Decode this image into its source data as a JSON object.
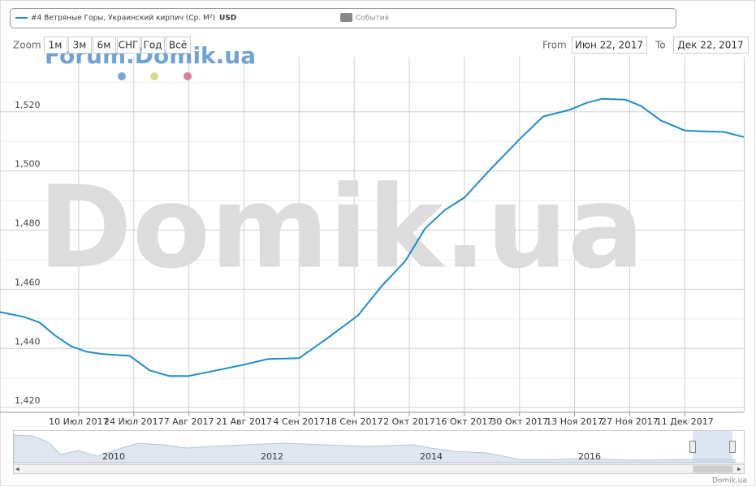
{
  "chart_data": {
    "type": "line",
    "legend_label": "#4 Ветряные Горы, Украинский кирпич (Ср. M²)",
    "legend_unit": "USD",
    "events_label": "События",
    "zoom_label": "Zoom",
    "zoom_buttons": [
      "1м",
      "3м",
      "6м",
      "СНГ",
      "Год",
      "Всё"
    ],
    "from_label": "From",
    "from_value": "Июн 22, 2017",
    "to_label": "To",
    "to_value": "Дек 22, 2017",
    "watermark_small": "Forum.Domik.ua",
    "watermark_large": "Domik.ua",
    "credit": "Domik.ua",
    "navigator_labels": [
      "2010",
      "2012",
      "2014",
      "2016"
    ],
    "x": [
      "2017-06-20",
      "2017-06-26",
      "2017-06-30",
      "2017-07-04",
      "2017-07-08",
      "2017-07-12",
      "2017-07-16",
      "2017-07-23",
      "2017-07-28",
      "2017-08-02",
      "2017-08-07",
      "2017-08-13",
      "2017-08-21",
      "2017-08-27",
      "2017-09-04",
      "2017-09-11",
      "2017-09-19",
      "2017-09-25",
      "2017-10-01",
      "2017-10-06",
      "2017-10-11",
      "2017-10-16",
      "2017-10-22",
      "2017-10-30",
      "2017-11-05",
      "2017-11-12",
      "2017-11-16",
      "2017-11-20",
      "2017-11-26",
      "2017-11-30",
      "2017-12-05",
      "2017-12-11",
      "2017-12-15",
      "2017-12-21",
      "2017-12-26"
    ],
    "series": [
      {
        "name": "#4 Ветряные Горы, Украинский кирпич (Ср. M²)",
        "color": "#1f8dc6",
        "values": [
          1452.3,
          1450.7,
          1448.8,
          1444.4,
          1440.8,
          1438.9,
          1438.1,
          1437.5,
          1432.6,
          1430.7,
          1430.7,
          1432.3,
          1434.5,
          1436.4,
          1436.7,
          1443.3,
          1451.2,
          1461.1,
          1469.6,
          1480.5,
          1486.8,
          1491.0,
          1499.7,
          1510.7,
          1518.4,
          1520.8,
          1523.0,
          1524.4,
          1524.1,
          1521.9,
          1517.0,
          1513.7,
          1513.4,
          1513.2,
          1511.5
        ]
      }
    ],
    "xlim": [
      "2017-06-20",
      "2017-12-26"
    ],
    "xticks": [
      {
        "value": "2017-07-10",
        "label": "10 Июл 2017"
      },
      {
        "value": "2017-07-24",
        "label": "24 Июл 2017"
      },
      {
        "value": "2017-08-07",
        "label": "7 Авг 2017"
      },
      {
        "value": "2017-08-21",
        "label": "21 Авг 2017"
      },
      {
        "value": "2017-09-04",
        "label": "4 Сен 2017"
      },
      {
        "value": "2017-09-18",
        "label": "18 Сен 2017"
      },
      {
        "value": "2017-10-02",
        "label": "2 Окт 2017"
      },
      {
        "value": "2017-10-16",
        "label": "16 Окт 2017"
      },
      {
        "value": "2017-10-30",
        "label": "30 Окт 2017"
      },
      {
        "value": "2017-11-13",
        "label": "13 Ноя 2017"
      },
      {
        "value": "2017-11-27",
        "label": "27 Ноя 2017"
      },
      {
        "value": "2017-12-11",
        "label": "11 Дек 2017"
      }
    ],
    "ylim": [
      1418.4,
      1538.6
    ],
    "yticks": [
      {
        "value": 1420,
        "label": "1,420"
      },
      {
        "value": 1440,
        "label": "1,440"
      },
      {
        "value": 1460,
        "label": "1,460"
      },
      {
        "value": 1480,
        "label": "1,480"
      },
      {
        "value": 1500,
        "label": "1,500"
      },
      {
        "value": 1520,
        "label": "1,520"
      }
    ],
    "minor_yticks": [
      1430,
      1450,
      1470,
      1490,
      1510,
      1530
    ],
    "grid": true
  }
}
